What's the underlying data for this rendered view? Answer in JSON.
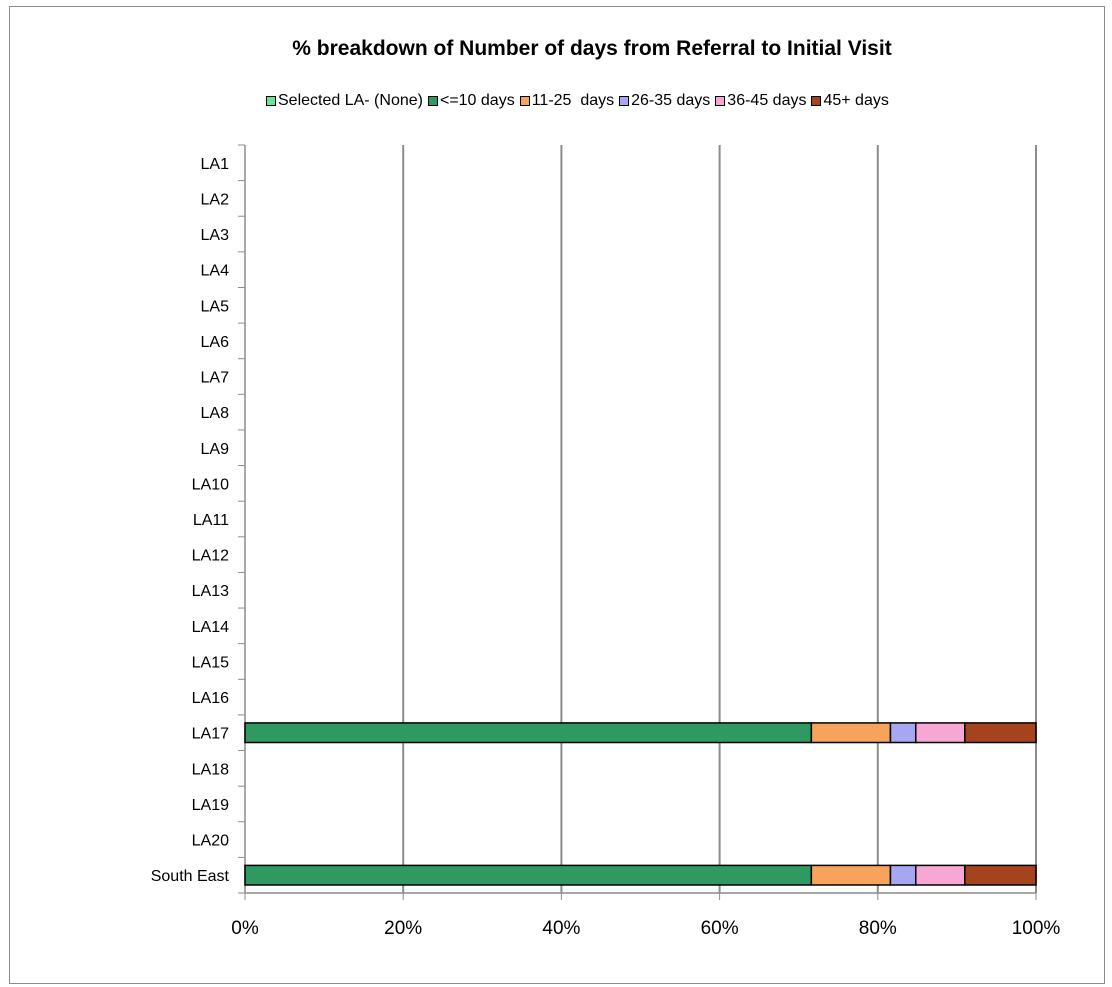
{
  "chart_data": {
    "type": "bar",
    "orientation": "horizontal",
    "stacked": true,
    "title": "% breakdown of Number of days from Referral to Initial Visit",
    "legend": "top",
    "categories": [
      "LA1",
      "LA2",
      "LA3",
      "LA4",
      "LA5",
      "LA6",
      "LA7",
      "LA8",
      "LA9",
      "LA10",
      "LA11",
      "LA12",
      "LA13",
      "LA14",
      "LA15",
      "LA16",
      "LA17",
      "LA18",
      "LA19",
      "LA20",
      "South East"
    ],
    "xlim": [
      0,
      100
    ],
    "xticks": [
      "0%",
      "20%",
      "40%",
      "60%",
      "80%",
      "100%"
    ],
    "grid": "vertical",
    "series": [
      {
        "name": "Selected LA- (None)",
        "color": "#66e69a",
        "values": [
          null,
          null,
          null,
          null,
          null,
          null,
          null,
          null,
          null,
          null,
          null,
          null,
          null,
          null,
          null,
          null,
          null,
          null,
          null,
          null,
          null
        ]
      },
      {
        "name": "<=10 days",
        "color": "#2e9a62",
        "values": [
          null,
          null,
          null,
          null,
          null,
          null,
          null,
          null,
          null,
          null,
          null,
          null,
          null,
          null,
          null,
          null,
          71.6,
          null,
          null,
          null,
          71.6
        ]
      },
      {
        "name": "11-25  days",
        "color": "#f7a35c",
        "values": [
          null,
          null,
          null,
          null,
          null,
          null,
          null,
          null,
          null,
          null,
          null,
          null,
          null,
          null,
          null,
          null,
          10.0,
          null,
          null,
          null,
          10.0
        ]
      },
      {
        "name": "26-35 days",
        "color": "#a6a6f2",
        "values": [
          null,
          null,
          null,
          null,
          null,
          null,
          null,
          null,
          null,
          null,
          null,
          null,
          null,
          null,
          null,
          null,
          3.2,
          null,
          null,
          null,
          3.2
        ]
      },
      {
        "name": "36-45 days",
        "color": "#f7a7d3",
        "values": [
          null,
          null,
          null,
          null,
          null,
          null,
          null,
          null,
          null,
          null,
          null,
          null,
          null,
          null,
          null,
          null,
          6.2,
          null,
          null,
          null,
          6.2
        ]
      },
      {
        "name": "45+ days",
        "color": "#a5431f",
        "values": [
          null,
          null,
          null,
          null,
          null,
          null,
          null,
          null,
          null,
          null,
          null,
          null,
          null,
          null,
          null,
          null,
          9.0,
          null,
          null,
          null,
          9.0
        ]
      }
    ]
  }
}
